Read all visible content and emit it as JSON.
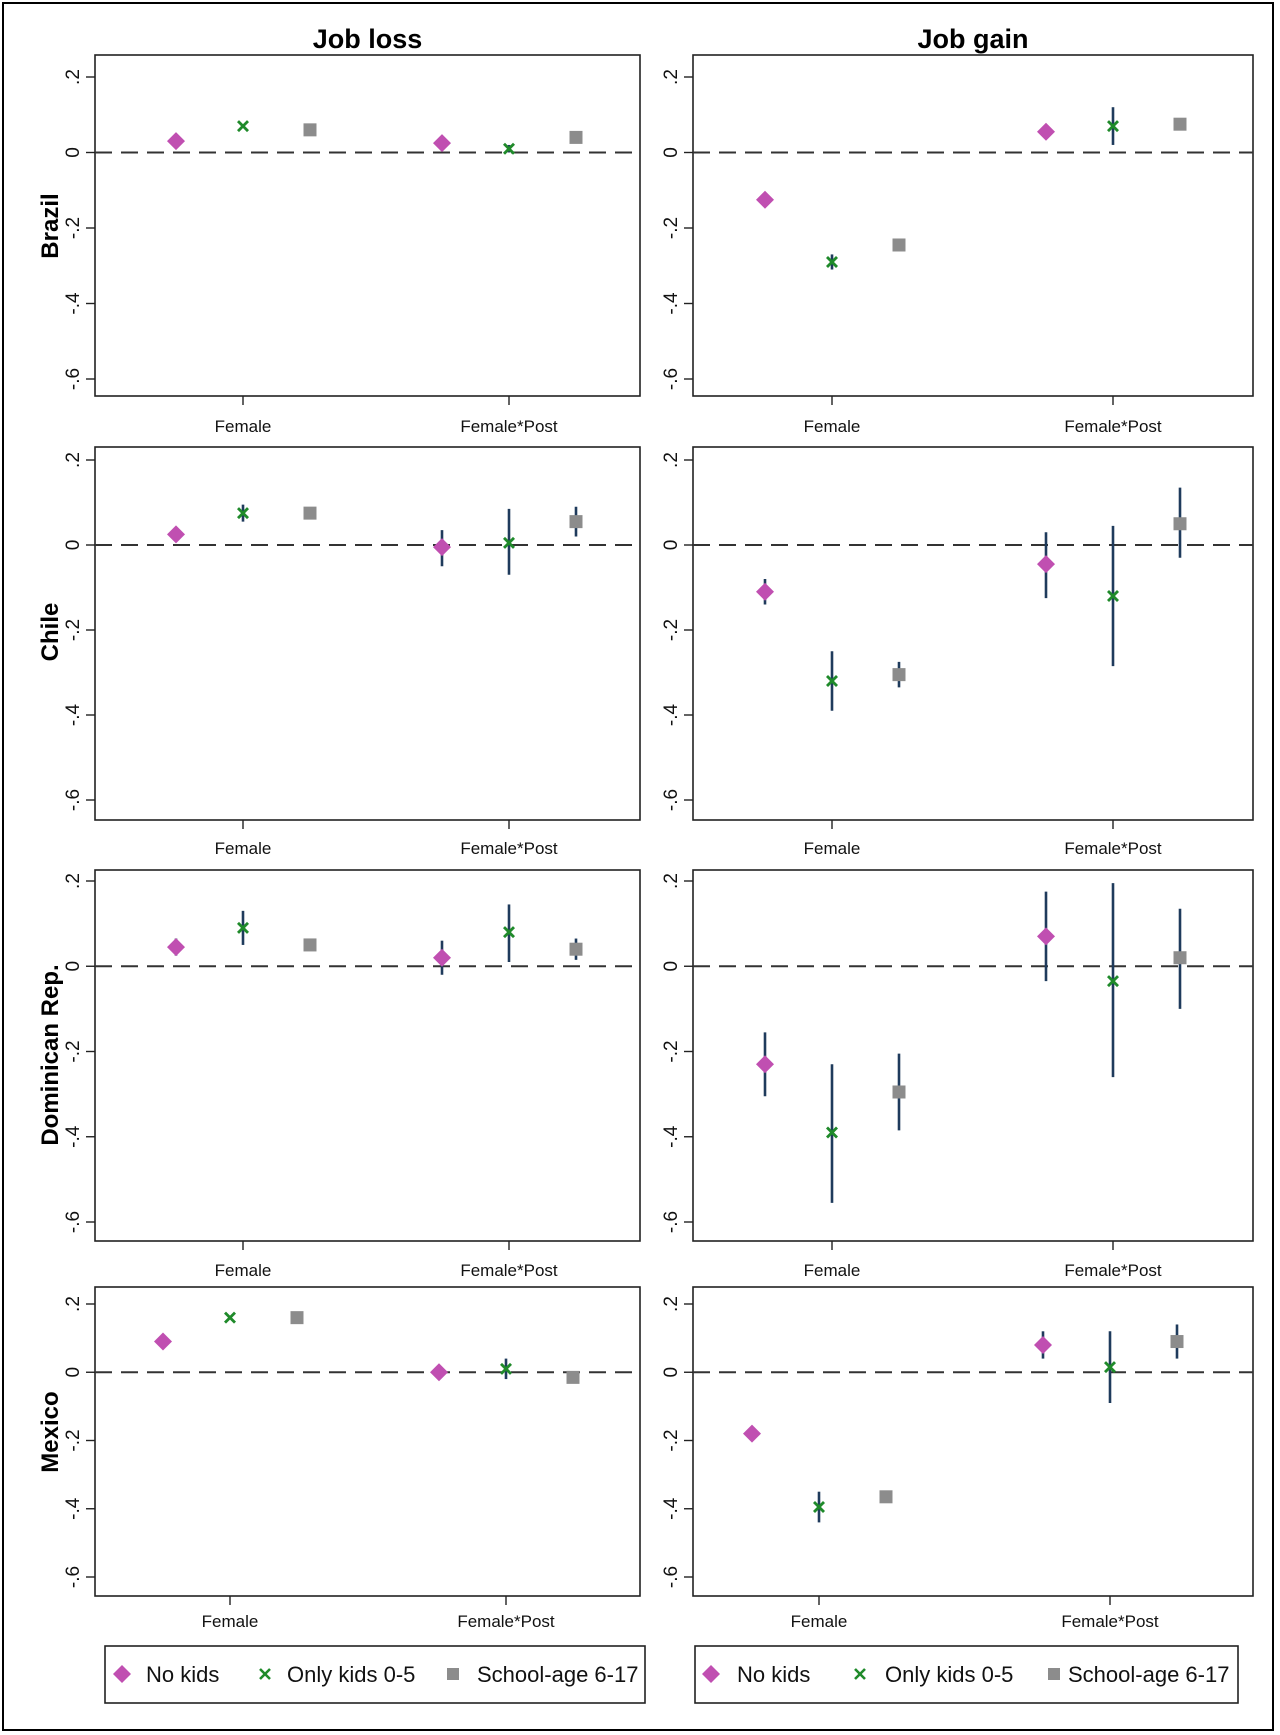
{
  "colors": {
    "no_kids": "#c04fb1",
    "only_kids": "#1f8a2a",
    "school_age": "#8c8c8c",
    "ci": "#1f3b5c",
    "zero_line": "#333333"
  },
  "chart_data": {
    "type": "scatter",
    "title": "",
    "columns": [
      "Job loss",
      "Job gain"
    ],
    "rows": [
      "Brazil",
      "Chile",
      "Dominican Rep.",
      "Mexico"
    ],
    "categories": [
      "Female",
      "Female*Post"
    ],
    "yticks": [
      ".2",
      "0",
      "-.2",
      "-.4",
      "-.6"
    ],
    "ylim": [
      -0.6,
      0.2
    ],
    "legend": {
      "position": "bottom",
      "entries": [
        "No kids",
        "Only kids 0-5",
        "School-age 6-17"
      ],
      "markers": [
        "diamond",
        "x",
        "square"
      ]
    },
    "panels": [
      {
        "row": "Brazil",
        "column": "Job loss",
        "series": [
          {
            "name": "No kids",
            "values": [
              [
                0.03,
                0.03,
                0.03
              ],
              [
                0.025,
                0.025,
                0.025
              ]
            ]
          },
          {
            "name": "Only kids 0-5",
            "values": [
              [
                0.07,
                0.07,
                0.07
              ],
              [
                0.01,
                0.0,
                0.02
              ]
            ]
          },
          {
            "name": "School-age 6-17",
            "values": [
              [
                0.06,
                0.06,
                0.06
              ],
              [
                0.04,
                0.04,
                0.04
              ]
            ]
          }
        ]
      },
      {
        "row": "Brazil",
        "column": "Job gain",
        "series": [
          {
            "name": "No kids",
            "values": [
              [
                -0.125,
                -0.125,
                -0.125
              ],
              [
                0.055,
                0.055,
                0.055
              ]
            ]
          },
          {
            "name": "Only kids 0-5",
            "values": [
              [
                -0.29,
                -0.31,
                -0.27
              ],
              [
                0.07,
                0.02,
                0.12
              ]
            ]
          },
          {
            "name": "School-age 6-17",
            "values": [
              [
                -0.245,
                -0.245,
                -0.245
              ],
              [
                0.075,
                0.06,
                0.09
              ]
            ]
          }
        ]
      },
      {
        "row": "Chile",
        "column": "Job loss",
        "series": [
          {
            "name": "No kids",
            "values": [
              [
                0.025,
                0.025,
                0.025
              ],
              [
                -0.005,
                -0.05,
                0.035
              ]
            ]
          },
          {
            "name": "Only kids 0-5",
            "values": [
              [
                0.075,
                0.055,
                0.095
              ],
              [
                0.005,
                -0.07,
                0.085
              ]
            ]
          },
          {
            "name": "School-age 6-17",
            "values": [
              [
                0.075,
                0.075,
                0.075
              ],
              [
                0.055,
                0.02,
                0.09
              ]
            ]
          }
        ]
      },
      {
        "row": "Chile",
        "column": "Job gain",
        "series": [
          {
            "name": "No kids",
            "values": [
              [
                -0.11,
                -0.14,
                -0.08
              ],
              [
                -0.045,
                -0.125,
                0.03
              ]
            ]
          },
          {
            "name": "Only kids 0-5",
            "values": [
              [
                -0.32,
                -0.39,
                -0.25
              ],
              [
                -0.12,
                -0.285,
                0.045
              ]
            ]
          },
          {
            "name": "School-age 6-17",
            "values": [
              [
                -0.305,
                -0.335,
                -0.275
              ],
              [
                0.05,
                -0.03,
                0.135
              ]
            ]
          }
        ]
      },
      {
        "row": "Dominican Rep.",
        "column": "Job loss",
        "series": [
          {
            "name": "No kids",
            "values": [
              [
                0.045,
                0.025,
                0.065
              ],
              [
                0.02,
                -0.02,
                0.06
              ]
            ]
          },
          {
            "name": "Only kids 0-5",
            "values": [
              [
                0.09,
                0.05,
                0.13
              ],
              [
                0.08,
                0.01,
                0.145
              ]
            ]
          },
          {
            "name": "School-age 6-17",
            "values": [
              [
                0.05,
                0.05,
                0.05
              ],
              [
                0.04,
                0.015,
                0.065
              ]
            ]
          }
        ]
      },
      {
        "row": "Dominican Rep.",
        "column": "Job gain",
        "series": [
          {
            "name": "No kids",
            "values": [
              [
                -0.23,
                -0.305,
                -0.155
              ],
              [
                0.07,
                -0.035,
                0.175
              ]
            ]
          },
          {
            "name": "Only kids 0-5",
            "values": [
              [
                -0.39,
                -0.555,
                -0.23
              ],
              [
                -0.035,
                -0.26,
                0.195
              ]
            ]
          },
          {
            "name": "School-age 6-17",
            "values": [
              [
                -0.295,
                -0.385,
                -0.205
              ],
              [
                0.02,
                -0.1,
                0.135
              ]
            ]
          }
        ]
      },
      {
        "row": "Mexico",
        "column": "Job loss",
        "series": [
          {
            "name": "No kids",
            "values": [
              [
                0.09,
                0.09,
                0.09
              ],
              [
                0.0,
                0.0,
                0.0
              ]
            ]
          },
          {
            "name": "Only kids 0-5",
            "values": [
              [
                0.16,
                0.16,
                0.16
              ],
              [
                0.01,
                -0.02,
                0.04
              ]
            ]
          },
          {
            "name": "School-age 6-17",
            "values": [
              [
                0.16,
                0.16,
                0.16
              ],
              [
                -0.015,
                -0.015,
                -0.015
              ]
            ]
          }
        ]
      },
      {
        "row": "Mexico",
        "column": "Job gain",
        "series": [
          {
            "name": "No kids",
            "values": [
              [
                -0.18,
                -0.18,
                -0.18
              ],
              [
                0.08,
                0.04,
                0.12
              ]
            ]
          },
          {
            "name": "Only kids 0-5",
            "values": [
              [
                -0.395,
                -0.44,
                -0.35
              ],
              [
                0.015,
                -0.09,
                0.12
              ]
            ]
          },
          {
            "name": "School-age 6-17",
            "values": [
              [
                -0.365,
                -0.365,
                -0.365
              ],
              [
                0.09,
                0.04,
                0.14
              ]
            ]
          }
        ]
      }
    ]
  }
}
